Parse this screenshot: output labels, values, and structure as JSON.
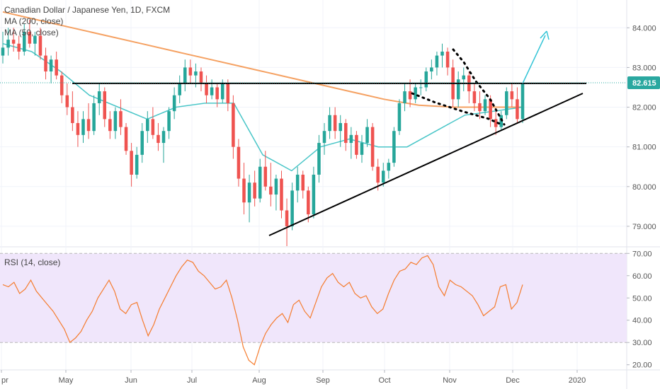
{
  "chart_data": [
    {
      "type": "candlestick",
      "title": "Canadian Dollar / Japanese Yen, 1D, FXCM",
      "indicators": [
        "MA (200, close)",
        "MA (50, close)"
      ],
      "ylim": [
        78.5,
        84.7
      ],
      "ticks_y": [
        "79.000",
        "80.000",
        "81.000",
        "82.000",
        "83.000",
        "84.000"
      ],
      "ticks_x": [
        "pr",
        "May",
        "Jun",
        "Jul",
        "Aug",
        "Sep",
        "Oct",
        "Nov",
        "Dec",
        "2020"
      ],
      "last_price": "82.615",
      "last_price_value": 82.615,
      "grid": true,
      "colors": {
        "up": "#26a69a",
        "down": "#ef5350",
        "ma200": "#f5a162",
        "ma50": "#4ac6c8",
        "last_price": "#2aa8a0",
        "projection": "#33c4d6"
      },
      "candles": [
        {
          "o": 83.3,
          "h": 83.9,
          "l": 83.1,
          "c": 83.5
        },
        {
          "o": 83.5,
          "h": 84.0,
          "l": 83.3,
          "c": 83.7
        },
        {
          "o": 83.7,
          "h": 84.0,
          "l": 83.4,
          "c": 83.6
        },
        {
          "o": 83.6,
          "h": 83.8,
          "l": 83.2,
          "c": 83.4
        },
        {
          "o": 83.4,
          "h": 84.1,
          "l": 83.3,
          "c": 83.9
        },
        {
          "o": 83.9,
          "h": 84.2,
          "l": 83.5,
          "c": 83.6
        },
        {
          "o": 83.6,
          "h": 83.9,
          "l": 83.3,
          "c": 83.8
        },
        {
          "o": 83.8,
          "h": 84.0,
          "l": 83.2,
          "c": 83.3
        },
        {
          "o": 83.3,
          "h": 83.5,
          "l": 82.7,
          "c": 82.9
        },
        {
          "o": 82.9,
          "h": 83.3,
          "l": 82.6,
          "c": 83.2
        },
        {
          "o": 83.2,
          "h": 83.4,
          "l": 82.7,
          "c": 82.8
        },
        {
          "o": 82.8,
          "h": 82.9,
          "l": 82.1,
          "c": 82.3
        },
        {
          "o": 82.3,
          "h": 82.6,
          "l": 81.8,
          "c": 82.0
        },
        {
          "o": 82.0,
          "h": 82.4,
          "l": 81.4,
          "c": 81.6
        },
        {
          "o": 81.6,
          "h": 81.9,
          "l": 81.0,
          "c": 81.3
        },
        {
          "o": 81.3,
          "h": 81.9,
          "l": 81.1,
          "c": 81.7
        },
        {
          "o": 81.7,
          "h": 82.1,
          "l": 81.2,
          "c": 81.4
        },
        {
          "o": 81.4,
          "h": 82.3,
          "l": 81.3,
          "c": 82.1
        },
        {
          "o": 82.1,
          "h": 82.6,
          "l": 81.8,
          "c": 82.4
        },
        {
          "o": 82.4,
          "h": 82.5,
          "l": 81.5,
          "c": 81.7
        },
        {
          "o": 81.7,
          "h": 81.9,
          "l": 81.2,
          "c": 81.4
        },
        {
          "o": 81.4,
          "h": 82.0,
          "l": 81.2,
          "c": 81.9
        },
        {
          "o": 81.9,
          "h": 82.2,
          "l": 81.3,
          "c": 81.5
        },
        {
          "o": 81.5,
          "h": 81.6,
          "l": 80.8,
          "c": 80.9
        },
        {
          "o": 80.9,
          "h": 81.1,
          "l": 80.0,
          "c": 80.3
        },
        {
          "o": 80.3,
          "h": 81.0,
          "l": 80.2,
          "c": 80.8
        },
        {
          "o": 80.8,
          "h": 81.6,
          "l": 80.6,
          "c": 81.4
        },
        {
          "o": 81.4,
          "h": 81.9,
          "l": 81.1,
          "c": 81.7
        },
        {
          "o": 81.7,
          "h": 82.0,
          "l": 81.2,
          "c": 81.3
        },
        {
          "o": 81.3,
          "h": 81.6,
          "l": 80.9,
          "c": 81.1
        },
        {
          "o": 81.1,
          "h": 81.5,
          "l": 80.6,
          "c": 81.4
        },
        {
          "o": 81.4,
          "h": 82.0,
          "l": 81.2,
          "c": 81.9
        },
        {
          "o": 81.9,
          "h": 82.5,
          "l": 81.7,
          "c": 82.3
        },
        {
          "o": 82.3,
          "h": 82.8,
          "l": 82.1,
          "c": 82.6
        },
        {
          "o": 82.6,
          "h": 83.2,
          "l": 82.4,
          "c": 83.0
        },
        {
          "o": 83.0,
          "h": 83.2,
          "l": 82.6,
          "c": 82.8
        },
        {
          "o": 82.8,
          "h": 83.1,
          "l": 82.5,
          "c": 82.9
        },
        {
          "o": 82.9,
          "h": 83.0,
          "l": 82.4,
          "c": 82.6
        },
        {
          "o": 82.6,
          "h": 82.8,
          "l": 82.1,
          "c": 82.3
        },
        {
          "o": 82.3,
          "h": 82.7,
          "l": 82.2,
          "c": 82.5
        },
        {
          "o": 82.5,
          "h": 82.6,
          "l": 82.0,
          "c": 82.2
        },
        {
          "o": 82.2,
          "h": 82.7,
          "l": 82.1,
          "c": 82.6
        },
        {
          "o": 82.6,
          "h": 82.7,
          "l": 81.9,
          "c": 82.1
        },
        {
          "o": 82.1,
          "h": 82.3,
          "l": 80.7,
          "c": 81.0
        },
        {
          "o": 81.0,
          "h": 81.2,
          "l": 80.0,
          "c": 80.2
        },
        {
          "o": 80.2,
          "h": 80.6,
          "l": 79.3,
          "c": 79.6
        },
        {
          "o": 79.6,
          "h": 80.3,
          "l": 79.1,
          "c": 80.1
        },
        {
          "o": 80.1,
          "h": 80.4,
          "l": 79.5,
          "c": 79.7
        },
        {
          "o": 79.7,
          "h": 80.7,
          "l": 79.6,
          "c": 80.5
        },
        {
          "o": 80.5,
          "h": 80.9,
          "l": 79.9,
          "c": 80.0
        },
        {
          "o": 80.0,
          "h": 80.6,
          "l": 79.5,
          "c": 79.8
        },
        {
          "o": 79.8,
          "h": 80.3,
          "l": 79.4,
          "c": 80.2
        },
        {
          "o": 80.2,
          "h": 80.4,
          "l": 79.2,
          "c": 79.4
        },
        {
          "o": 79.4,
          "h": 79.7,
          "l": 78.5,
          "c": 79.0
        },
        {
          "o": 79.0,
          "h": 80.1,
          "l": 78.9,
          "c": 79.9
        },
        {
          "o": 79.9,
          "h": 80.5,
          "l": 79.6,
          "c": 80.3
        },
        {
          "o": 80.3,
          "h": 80.4,
          "l": 79.7,
          "c": 79.9
        },
        {
          "o": 79.9,
          "h": 80.0,
          "l": 79.1,
          "c": 79.3
        },
        {
          "o": 79.3,
          "h": 80.5,
          "l": 79.2,
          "c": 80.3
        },
        {
          "o": 80.3,
          "h": 81.3,
          "l": 80.1,
          "c": 81.1
        },
        {
          "o": 81.1,
          "h": 81.6,
          "l": 80.8,
          "c": 81.4
        },
        {
          "o": 81.4,
          "h": 82.0,
          "l": 81.2,
          "c": 81.8
        },
        {
          "o": 81.8,
          "h": 82.0,
          "l": 81.2,
          "c": 81.4
        },
        {
          "o": 81.4,
          "h": 81.8,
          "l": 81.0,
          "c": 81.6
        },
        {
          "o": 81.6,
          "h": 81.7,
          "l": 80.9,
          "c": 81.1
        },
        {
          "o": 81.1,
          "h": 81.5,
          "l": 80.7,
          "c": 81.3
        },
        {
          "o": 81.3,
          "h": 81.4,
          "l": 80.7,
          "c": 80.8
        },
        {
          "o": 80.8,
          "h": 81.3,
          "l": 80.6,
          "c": 81.1
        },
        {
          "o": 81.1,
          "h": 81.7,
          "l": 81.0,
          "c": 81.5
        },
        {
          "o": 81.5,
          "h": 81.6,
          "l": 80.4,
          "c": 80.5
        },
        {
          "o": 80.5,
          "h": 80.7,
          "l": 79.9,
          "c": 80.1
        },
        {
          "o": 80.1,
          "h": 80.6,
          "l": 80.0,
          "c": 80.4
        },
        {
          "o": 80.4,
          "h": 80.7,
          "l": 80.2,
          "c": 80.6
        },
        {
          "o": 80.6,
          "h": 81.5,
          "l": 80.5,
          "c": 81.4
        },
        {
          "o": 81.4,
          "h": 82.2,
          "l": 81.3,
          "c": 82.1
        },
        {
          "o": 82.1,
          "h": 82.6,
          "l": 81.9,
          "c": 82.4
        },
        {
          "o": 82.4,
          "h": 82.7,
          "l": 82.0,
          "c": 82.2
        },
        {
          "o": 82.2,
          "h": 82.6,
          "l": 82.1,
          "c": 82.5
        },
        {
          "o": 82.5,
          "h": 82.7,
          "l": 82.3,
          "c": 82.5
        },
        {
          "o": 82.5,
          "h": 83.0,
          "l": 82.4,
          "c": 82.9
        },
        {
          "o": 82.9,
          "h": 83.2,
          "l": 82.7,
          "c": 83.0
        },
        {
          "o": 83.0,
          "h": 83.4,
          "l": 82.8,
          "c": 83.3
        },
        {
          "o": 83.3,
          "h": 83.6,
          "l": 83.0,
          "c": 83.4
        },
        {
          "o": 83.4,
          "h": 83.5,
          "l": 82.8,
          "c": 83.0
        },
        {
          "o": 83.0,
          "h": 83.2,
          "l": 82.0,
          "c": 82.2
        },
        {
          "o": 82.2,
          "h": 82.9,
          "l": 82.0,
          "c": 82.7
        },
        {
          "o": 82.7,
          "h": 83.0,
          "l": 82.4,
          "c": 82.8
        },
        {
          "o": 82.8,
          "h": 82.9,
          "l": 82.1,
          "c": 82.4
        },
        {
          "o": 82.4,
          "h": 82.6,
          "l": 81.9,
          "c": 82.1
        },
        {
          "o": 82.1,
          "h": 82.4,
          "l": 81.7,
          "c": 81.9
        },
        {
          "o": 81.9,
          "h": 82.3,
          "l": 81.8,
          "c": 82.2
        },
        {
          "o": 82.2,
          "h": 82.3,
          "l": 81.5,
          "c": 81.7
        },
        {
          "o": 81.7,
          "h": 81.9,
          "l": 81.3,
          "c": 81.5
        },
        {
          "o": 81.5,
          "h": 81.9,
          "l": 81.4,
          "c": 81.8
        },
        {
          "o": 81.8,
          "h": 82.5,
          "l": 81.7,
          "c": 82.4
        },
        {
          "o": 82.4,
          "h": 82.6,
          "l": 82.0,
          "c": 82.2
        },
        {
          "o": 82.2,
          "h": 82.5,
          "l": 81.6,
          "c": 81.7
        },
        {
          "o": 81.7,
          "h": 82.6,
          "l": 81.6,
          "c": 82.6
        }
      ],
      "ma200": [
        84.4,
        84.2,
        84.0,
        83.8,
        83.6,
        83.4,
        83.2,
        83.0,
        82.8,
        82.6,
        82.4,
        82.2,
        82.05,
        82.0,
        82.0,
        82.0
      ],
      "ma50": [
        83.6,
        83.4,
        82.9,
        82.3,
        82.0,
        81.7,
        82.0,
        82.1,
        82.1,
        80.8,
        80.4,
        81.0,
        81.2,
        81.0,
        81.0,
        81.4,
        81.8,
        81.9,
        82.0
      ],
      "support_line": [
        [
          79.0,
          78.5
        ],
        [
          82.3,
          82.3
        ]
      ],
      "resistance_level": 82.6,
      "rsi": {
        "label": "RSI (14, close)",
        "ylim": [
          18,
          72
        ],
        "ticks": [
          "20.00",
          "30.00",
          "40.00",
          "50.00",
          "60.00",
          "70.00"
        ],
        "bands": [
          30,
          70
        ],
        "colors": {
          "line": "#f57c2e",
          "band": "#f0e6fb",
          "band_edge": "#b7b7b7"
        },
        "values": [
          56,
          55,
          57,
          52,
          54,
          58,
          53,
          50,
          47,
          44,
          40,
          36,
          30,
          32,
          35,
          40,
          44,
          50,
          54,
          58,
          53,
          45,
          43,
          47,
          48,
          40,
          33,
          38,
          45,
          50,
          55,
          60,
          64,
          67,
          66,
          62,
          60,
          57,
          54,
          55,
          58,
          50,
          40,
          28,
          22,
          20,
          28,
          34,
          38,
          41,
          43,
          39,
          47,
          49,
          44,
          41,
          48,
          55,
          59,
          61,
          57,
          55,
          57,
          52,
          50,
          51,
          46,
          43,
          45,
          52,
          58,
          62,
          63,
          66,
          65,
          68,
          69,
          65,
          55,
          51,
          58,
          56,
          55,
          53,
          51,
          47,
          42,
          44,
          46,
          55,
          56,
          45,
          48,
          56
        ]
      }
    }
  ]
}
